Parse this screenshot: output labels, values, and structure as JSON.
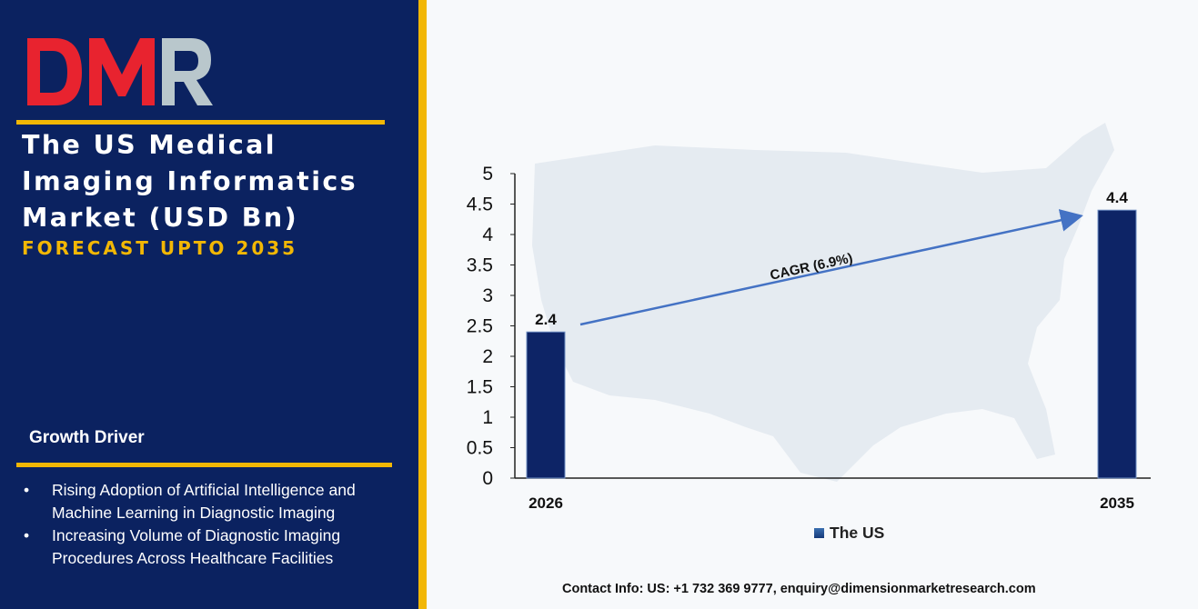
{
  "logo": {
    "text": "DMR",
    "colors": {
      "d": "#e8232f",
      "m": "#b9c7cc",
      "r": "#b9c7cc"
    }
  },
  "title": "The US Medical\nImaging Informatics\nMarket (USD Bn)",
  "subtitle": "FORECAST UPTO 2035",
  "growth": {
    "heading": "Growth Driver",
    "drivers": [
      "Rising Adoption of Artificial Intelligence and Machine Learning in Diagnostic Imaging",
      "Increasing Volume of Diagnostic Imaging Procedures Across Healthcare Facilities"
    ],
    "bullet": "•"
  },
  "colors": {
    "panel": "#0b2260",
    "accent": "#f2b705",
    "bar": "#0d2466",
    "arrow": "#4472c4"
  },
  "chart_data": {
    "type": "bar",
    "categories": [
      "2026",
      "2035"
    ],
    "series": [
      {
        "name": "The US",
        "values": [
          2.4,
          4.4
        ]
      }
    ],
    "data_labels": [
      "2.4",
      "4.4"
    ],
    "ylim": [
      0,
      5
    ],
    "yticks": [
      "0",
      "0.5",
      "1",
      "1.5",
      "2",
      "2.5",
      "3",
      "3.5",
      "4",
      "4.5",
      "5"
    ],
    "annotation": "CAGR (6.9%)",
    "legend": "bottom-center",
    "grid": false
  },
  "contact": "Contact Info: US: +1 732 369 9777, enquiry@dimensionmarketresearch.com"
}
